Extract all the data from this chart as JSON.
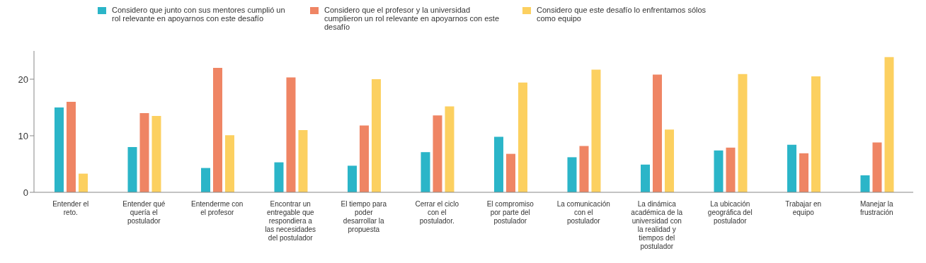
{
  "chart_data": {
    "type": "bar",
    "categories": [
      "Entender el reto.",
      "Entender qué quería el postulador",
      "Entenderme con el profesor",
      "Encontrar un entregable que respondiera a las necesidades del postulador",
      "El  tiempo para poder desarrollar la propuesta",
      "Cerrar el ciclo con el postulador.",
      "El compromiso por parte del postulador",
      "La comunicación con el postulador",
      "La dinámica académica de la universidad con la realidad y tiempos del postulador",
      "La ubicación geográfica del postulador",
      "Trabajar en equipo",
      "Manejar la frustración"
    ],
    "series": [
      {
        "name": "Considero que junto con sus mentores cumplió un rol relevante en apoyarnos con este desafío",
        "color": "#2bb5c8",
        "values": [
          15,
          8,
          4.3,
          5.3,
          4.7,
          7.1,
          9.8,
          6.2,
          4.9,
          7.4,
          8.4,
          3
        ]
      },
      {
        "name": "Considero que el profesor y la universidad cumplieron un rol relevante en apoyarnos con este desafío",
        "color": "#ef8564",
        "values": [
          16,
          14,
          22,
          20.3,
          11.8,
          13.6,
          6.8,
          8.2,
          20.8,
          7.9,
          6.9,
          8.8
        ]
      },
      {
        "name": "Considero que este desafío lo enfrentamos sólos como equipo",
        "color": "#fcd060",
        "values": [
          3.3,
          13.5,
          10.1,
          11,
          20,
          15.2,
          19.4,
          21.7,
          11.1,
          20.9,
          20.5,
          23.9
        ]
      }
    ],
    "ylim": [
      0,
      25
    ],
    "yticks": [
      0,
      10,
      20
    ],
    "grid": false,
    "legend": "top"
  }
}
